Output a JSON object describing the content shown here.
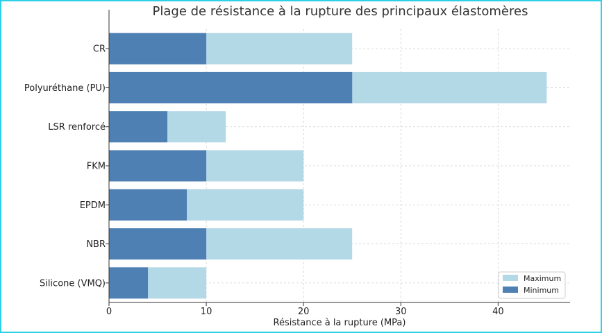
{
  "chart_data": {
    "type": "bar",
    "orientation": "horizontal",
    "title": "Plage de résistance à la rupture des principaux élastomères",
    "xlabel": "Résistance à la rupture (MPa)",
    "ylabel": "",
    "categories": [
      "Silicone (VMQ)",
      "NBR",
      "EPDM",
      "FKM",
      "LSR renforcé",
      "Polyuréthane (PU)",
      "CR"
    ],
    "series": [
      {
        "name": "Minimum",
        "values": [
          4,
          10,
          8,
          10,
          6,
          25,
          10
        ],
        "color": "#4f80b4"
      },
      {
        "name": "Maximum",
        "values": [
          10,
          25,
          20,
          20,
          12,
          45,
          25
        ],
        "color": "#b3d8e6"
      }
    ],
    "xlim": [
      0,
      47.4
    ],
    "xticks": [
      0,
      10,
      20,
      30,
      40
    ],
    "grid": true,
    "legend_position": "bottom-right"
  }
}
